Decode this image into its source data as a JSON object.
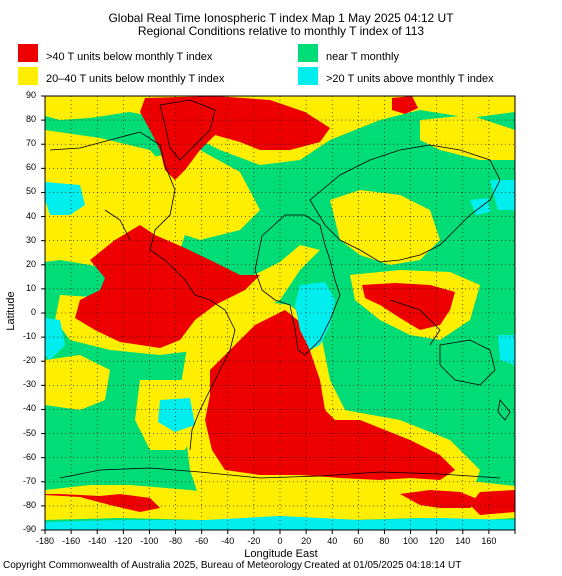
{
  "title": "Global Real Time Ionospheric T index Map 1 May 2025 04:12 UT",
  "subtitle": "Regional Conditions relative to monthly T index of 113",
  "legend": [
    {
      "label": ">40 T units below monthly T index",
      "color": "#ee0000"
    },
    {
      "label": "20–40 T units below monthly T index",
      "color": "#ffee00"
    },
    {
      "label": "near T monthly",
      "color": "#00dd77"
    },
    {
      "label": ">20 T units above monthly T index",
      "color": "#00eeee"
    }
  ],
  "axes": {
    "xlabel": "Longitude East",
    "ylabel": "Latitude",
    "x_ticks": [
      "-180",
      "-160",
      "-140",
      "-120",
      "-100",
      "-80",
      "-60",
      "-40",
      "-20",
      "0",
      "20",
      "40",
      "60",
      "80",
      "100",
      "120",
      "140",
      "160"
    ],
    "y_ticks": [
      "90",
      "80",
      "70",
      "60",
      "50",
      "40",
      "30",
      "20",
      "10",
      "0",
      "-10",
      "-20",
      "-30",
      "-40",
      "-50",
      "-60",
      "-70",
      "-80",
      "-90"
    ]
  },
  "footer": {
    "copyright": "Copyright Commonwealth of Australia 2025, Bureau of Meteorology",
    "created": "Created at 01/05/2025 04:18:14 UT"
  }
}
